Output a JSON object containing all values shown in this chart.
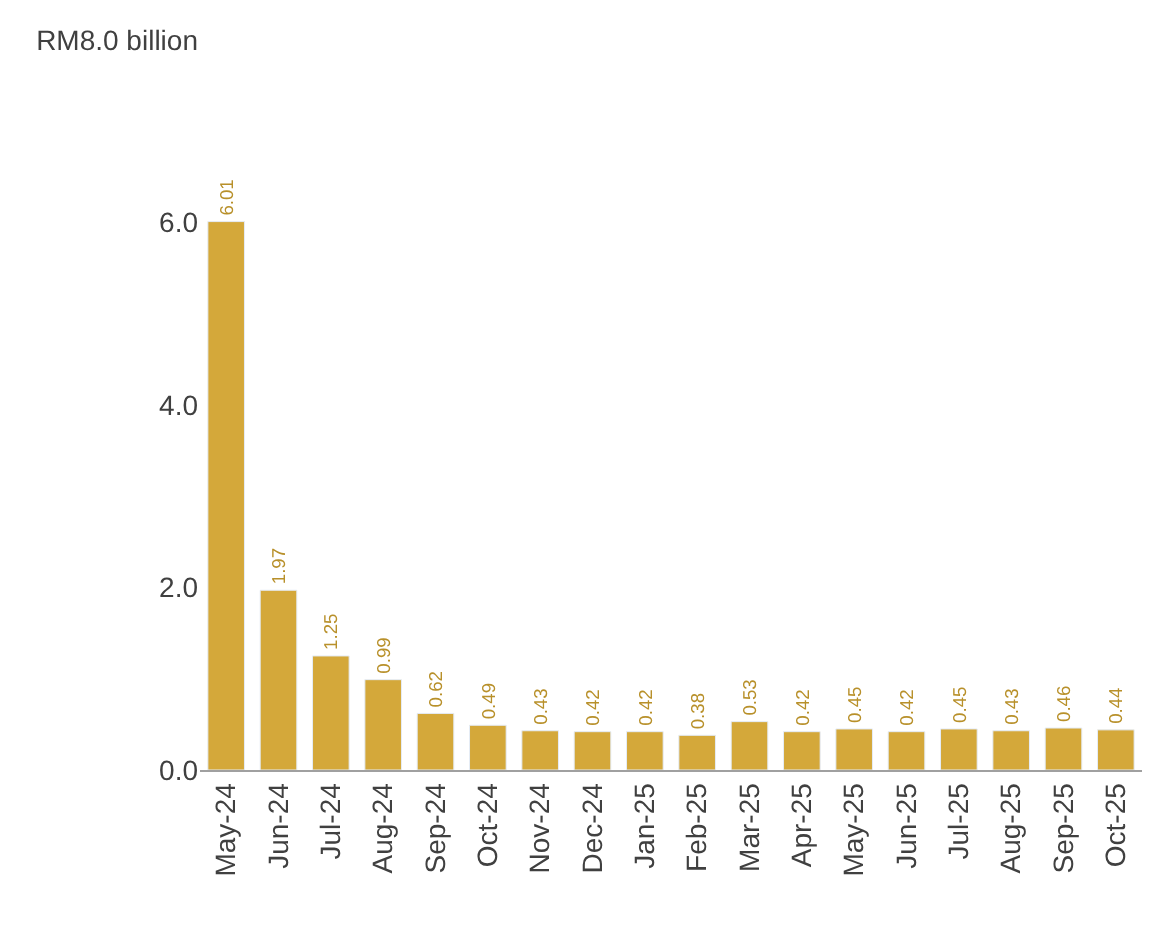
{
  "chart_data": {
    "type": "bar",
    "categories": [
      "May-24",
      "Jun-24",
      "Jul-24",
      "Aug-24",
      "Sep-24",
      "Oct-24",
      "Nov-24",
      "Dec-24",
      "Jan-25",
      "Feb-25",
      "Mar-25",
      "Apr-25",
      "May-25",
      "Jun-25",
      "Jul-25",
      "Aug-25",
      "Sep-25",
      "Oct-25"
    ],
    "values": [
      6.01,
      1.97,
      1.25,
      0.99,
      0.62,
      0.49,
      0.43,
      0.42,
      0.42,
      0.38,
      0.53,
      0.42,
      0.45,
      0.42,
      0.45,
      0.43,
      0.46,
      0.44
    ],
    "color": "#d4a83a",
    "data_labels": true,
    "legend": false,
    "ylim": [
      0,
      8
    ],
    "yticks": [
      {
        "value": 0,
        "label": "0.0"
      },
      {
        "value": 2,
        "label": "2.0"
      },
      {
        "value": 4,
        "label": "4.0"
      },
      {
        "value": 6,
        "label": "6.0"
      },
      {
        "value": 8,
        "label": "RM8.0 billion"
      }
    ]
  }
}
